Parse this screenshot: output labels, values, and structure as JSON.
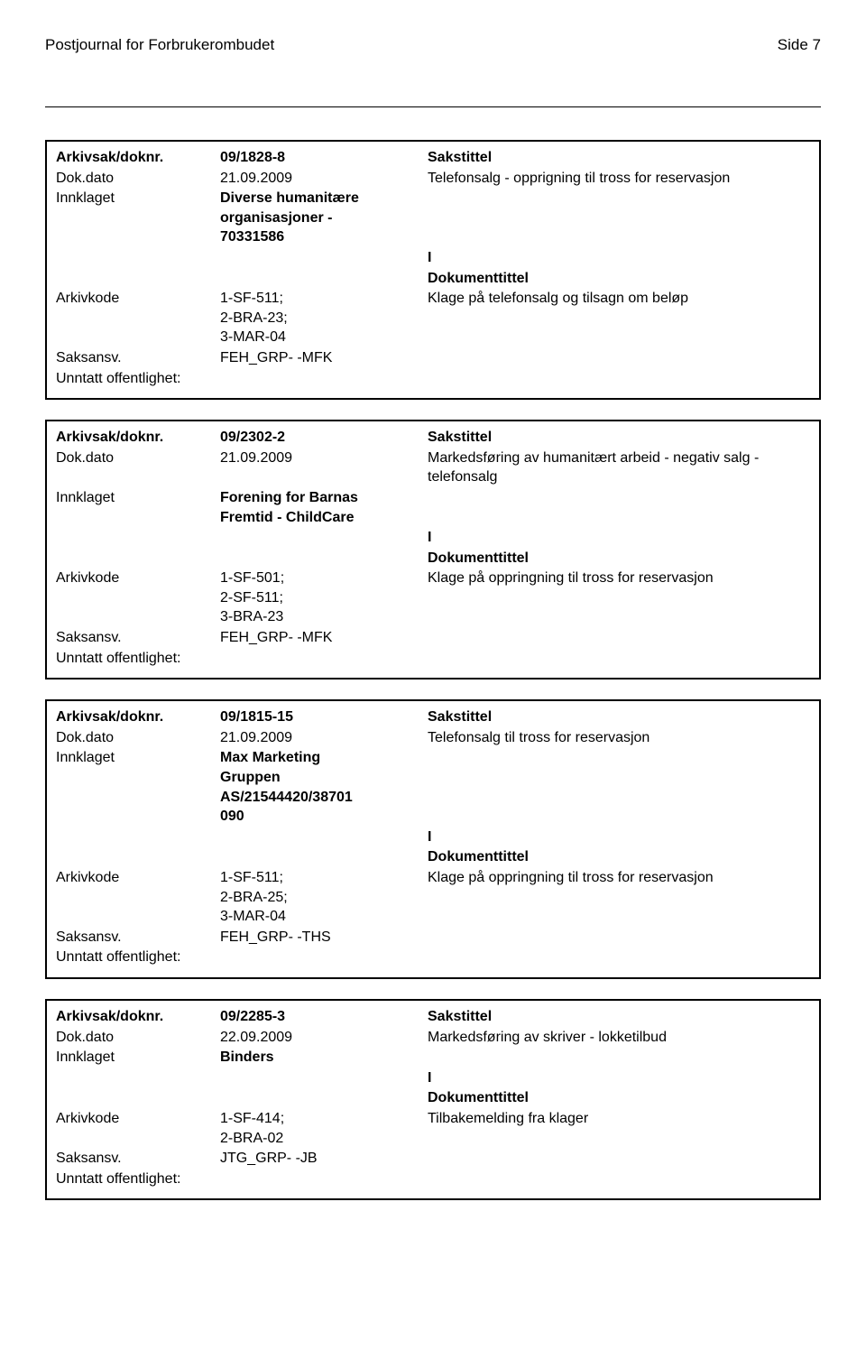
{
  "header": {
    "title": "Postjournal for Forbrukerombudet",
    "page": "Side 7"
  },
  "records": [
    {
      "arkivsak_label": "Arkivsak/doknr.",
      "arkivsak_value": "09/1828-8",
      "sakstittel_label": "Sakstittel",
      "dokdato_label": "Dok.dato",
      "dokdato_value": "21.09.2009",
      "sakstittel_value": "Telefonsalg - opprigning til tross for reservasjon",
      "innklaget_label": "Innklaget",
      "innklaget_value": "Diverse humanitære\norganisasjoner -\n70331586",
      "io_value": "I",
      "doktittel_label": "Dokumenttittel",
      "arkivkode_label": "Arkivkode",
      "arkivkode_value": "1-SF-511;\n2-BRA-23;\n3-MAR-04",
      "doktittel_value": "Klage på telefonsalg og tilsagn om beløp",
      "saksansv_label": "Saksansv.",
      "saksansv_value": "FEH_GRP- -MFK",
      "unntatt_label": "Unntatt offentlighet:"
    },
    {
      "arkivsak_label": "Arkivsak/doknr.",
      "arkivsak_value": "09/2302-2",
      "sakstittel_label": "Sakstittel",
      "dokdato_label": "Dok.dato",
      "dokdato_value": "21.09.2009",
      "sakstittel_value": "Markedsføring av humanitært arbeid - negativ salg - telefonsalg",
      "innklaget_label": "Innklaget",
      "innklaget_value": "Forening for Barnas\nFremtid - ChildCare",
      "io_value": "I",
      "doktittel_label": "Dokumenttittel",
      "arkivkode_label": "Arkivkode",
      "arkivkode_value": "1-SF-501;\n2-SF-511;\n3-BRA-23",
      "doktittel_value": "Klage på oppringning til tross for reservasjon",
      "saksansv_label": "Saksansv.",
      "saksansv_value": "FEH_GRP- -MFK",
      "unntatt_label": "Unntatt offentlighet:"
    },
    {
      "arkivsak_label": "Arkivsak/doknr.",
      "arkivsak_value": "09/1815-15",
      "sakstittel_label": "Sakstittel",
      "dokdato_label": "Dok.dato",
      "dokdato_value": "21.09.2009",
      "sakstittel_value": "Telefonsalg til tross for reservasjon",
      "innklaget_label": "Innklaget",
      "innklaget_value": "Max Marketing\nGruppen\nAS/21544420/38701\n090",
      "io_value": "I",
      "doktittel_label": "Dokumenttittel",
      "arkivkode_label": "Arkivkode",
      "arkivkode_value": "1-SF-511;\n2-BRA-25;\n3-MAR-04",
      "doktittel_value": "Klage på oppringning til tross for reservasjon",
      "saksansv_label": "Saksansv.",
      "saksansv_value": "FEH_GRP- -THS",
      "unntatt_label": "Unntatt offentlighet:"
    },
    {
      "arkivsak_label": "Arkivsak/doknr.",
      "arkivsak_value": "09/2285-3",
      "sakstittel_label": "Sakstittel",
      "dokdato_label": "Dok.dato",
      "dokdato_value": "22.09.2009",
      "sakstittel_value": "Markedsføring av skriver - lokketilbud",
      "innklaget_label": "Innklaget",
      "innklaget_value": "Binders",
      "io_value": "I",
      "doktittel_label": "Dokumenttittel",
      "arkivkode_label": "Arkivkode",
      "arkivkode_value": "1-SF-414;\n2-BRA-02",
      "doktittel_value": "Tilbakemelding fra klager",
      "saksansv_label": "Saksansv.",
      "saksansv_value": "JTG_GRP- -JB",
      "unntatt_label": "Unntatt offentlighet:"
    }
  ]
}
